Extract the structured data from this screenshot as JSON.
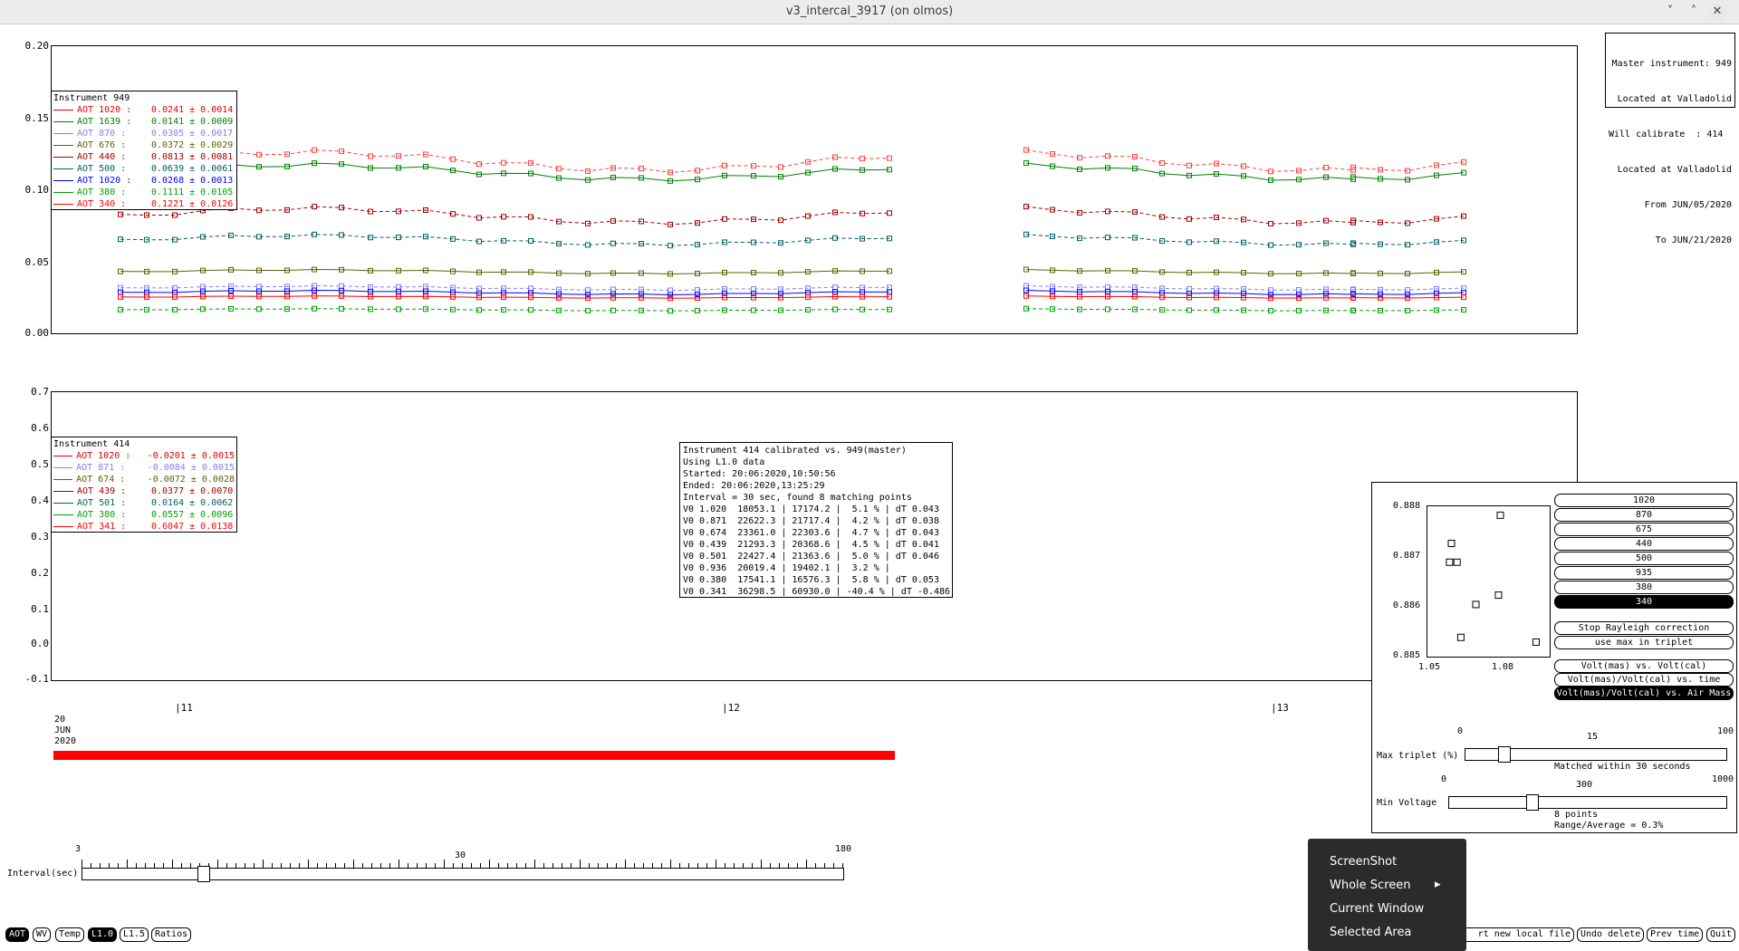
{
  "window": {
    "title": "v3_intercal_3917 (on olmos)",
    "minimize": "˅",
    "maximize": "˄",
    "close": "✕"
  },
  "top_plot": {
    "yticks": [
      "0.20",
      "0.15",
      "0.10",
      "0.05",
      "0.00"
    ],
    "legend_title": "Instrument 949",
    "legend": [
      {
        "label": "AOT 1020 :",
        "value": "0.0241 ± 0.0014",
        "color": "#e00000"
      },
      {
        "label": "AOT 1639 :",
        "value": "0.0141 ± 0.0009",
        "color": "#008000"
      },
      {
        "label": "AOT 870 :",
        "value": "0.0305 ± 0.0017",
        "color": "#8080ff"
      },
      {
        "label": "AOT 676 :",
        "value": "0.0372 ± 0.0029",
        "color": "#606000"
      },
      {
        "label": "AOT 440 :",
        "value": "0.0813 ± 0.0081",
        "color": "#a00000"
      },
      {
        "label": "AOT 500 :",
        "value": "0.0639 ± 0.0061",
        "color": "#006060"
      },
      {
        "label": "AOT 1020 :",
        "value": "0.0268 ± 0.0013",
        "color": "#0000ff"
      },
      {
        "label": "AOT 380 :",
        "value": "0.1111 ± 0.0105",
        "color": "#00a000"
      },
      {
        "label": "AOT 340 :",
        "value": "0.1221 ± 0.0126",
        "color": "#ff0000"
      }
    ],
    "info": [
      "Master instrument: 949",
      "Located at Valladolid",
      "Will calibrate  : 414",
      "Located at Valladolid",
      "From JUN/05/2020",
      "To JUN/21/2020"
    ]
  },
  "bottom_plot": {
    "yticks": [
      "0.7",
      "0.6",
      "0.5",
      "0.4",
      "0.3",
      "0.2",
      "0.1",
      "0.0",
      "-0.1"
    ],
    "legend_title": "Instrument 414",
    "legend": [
      {
        "label": "AOT 1020 :",
        "value": "-0.0201 ± 0.0015",
        "color": "#e00000"
      },
      {
        "label": "AOT 871 :",
        "value": "-0.0084 ± 0.0015",
        "color": "#8080ff"
      },
      {
        "label": "AOT 674 :",
        "value": "-0.0072 ± 0.0028",
        "color": "#606000"
      },
      {
        "label": "AOT 439 :",
        "value": "0.0377 ± 0.0070",
        "color": "#a00000"
      },
      {
        "label": "AOT 501 :",
        "value": "0.0164 ± 0.0062",
        "color": "#006060"
      },
      {
        "label": "AOT 380 :",
        "value": "0.0557 ± 0.0096",
        "color": "#00a000"
      },
      {
        "label": "AOT 341 :",
        "value": "0.6047 ± 0.0138",
        "color": "#ff0000"
      }
    ],
    "calib_info": [
      "Instrument 414 calibrated vs. 949(master)",
      "Using L1.0 data",
      "Started: 20:06:2020,10:50:56",
      "Ended: 20:06:2020,13:25:29",
      "Interval = 30 sec, found 8 matching points",
      "V0 1.020  18053.1 | 17174.2 |  5.1 % | dT 0.043",
      "V0 0.871  22622.3 | 21717.4 |  4.2 % | dT 0.038",
      "V0 0.674  23361.0 | 22303.6 |  4.7 % | dT 0.043",
      "V0 0.439  21293.3 | 20368.6 |  4.5 % | dT 0.041",
      "V0 0.501  22427.4 | 21363.6 |  5.0 % | dT 0.046",
      "V0 0.936  20019.4 | 19402.1 |  3.2 % |",
      "V0 0.380  17541.1 | 16576.3 |  5.8 % | dT 0.053",
      "V0 0.341  36298.5 | 60930.0 | -40.4 % | dT -0.486"
    ]
  },
  "time_axis": {
    "ticks": [
      "|11",
      "|12",
      "|13"
    ],
    "date_lines": [
      "20",
      "JUN",
      "2020"
    ]
  },
  "interval_slider": {
    "label": "Interval(sec)",
    "min": "3",
    "mid": "30",
    "max": "180",
    "position": 0.16
  },
  "side_panel": {
    "scatter_yticks": [
      "0.888",
      "0.887",
      "0.886",
      "0.885"
    ],
    "scatter_xticks": [
      "1.05",
      "1.08"
    ],
    "scatter_points": [
      [
        1.053,
        0.8873
      ],
      [
        1.052,
        0.8869
      ],
      [
        1.056,
        0.8869
      ],
      [
        1.079,
        0.8879
      ],
      [
        1.078,
        0.8862
      ],
      [
        1.066,
        0.886
      ],
      [
        1.058,
        0.8853
      ],
      [
        1.098,
        0.8852
      ]
    ],
    "wavelength_buttons": [
      "1020",
      "870",
      "675",
      "440",
      "500",
      "935",
      "380",
      "340"
    ],
    "selected_wavelength": "340",
    "rayleigh_button": "Stop Rayleigh correction",
    "maxtriplet_button": "use max in triplet",
    "view_buttons": [
      "Volt(mas) vs. Volt(cal)",
      "Volt(mas)/Volt(cal) vs. time",
      "Volt(mas)/Volt(cal) vs. Air Mass"
    ],
    "selected_view": "Volt(mas)/Volt(cal) vs. Air Mass",
    "max_triplet": {
      "label": "Max triplet (%)",
      "min": "0",
      "mid": "15",
      "max": "100",
      "note": "Matched within 30 seconds",
      "position": 0.15
    },
    "min_voltage": {
      "label": "Min Voltage",
      "min": "0",
      "mid": "300",
      "max": "1000",
      "note1": "8 points",
      "note2": "Range/Average = 0.3%",
      "position": 0.3
    }
  },
  "toolbar": {
    "left": [
      "AOT",
      "WV",
      "Temp",
      "L1.0",
      "L1.5",
      "Ratios"
    ],
    "selected": [
      "AOT",
      "L1.0"
    ],
    "right": [
      "rt new local file",
      "Undo delete",
      "Prev time",
      "Quit"
    ]
  },
  "context_menu": {
    "items": [
      "ScreenShot",
      "Whole Screen",
      "Current Window",
      "Selected Area"
    ],
    "submenu_arrow": "▸"
  }
}
